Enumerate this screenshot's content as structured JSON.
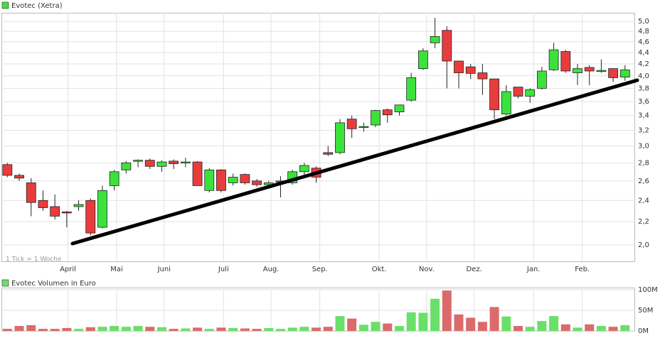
{
  "chart_data": [
    {
      "type": "candlestick",
      "title": "Evotec (Xetra)",
      "note": "1 Tick = 1 Woche",
      "up_color": "#3ce23c",
      "down_color": "#e83c3c",
      "log_scale": true,
      "grid": true,
      "open": [
        2.78,
        2.66,
        2.58,
        2.4,
        2.34,
        2.29,
        2.34,
        2.4,
        2.15,
        2.55,
        2.72,
        2.82,
        2.83,
        2.76,
        2.82,
        2.81,
        2.81,
        2.5,
        2.72,
        2.58,
        2.67,
        2.6,
        2.56,
        2.59,
        2.58,
        2.7,
        2.74,
        2.92,
        2.92,
        3.35,
        3.25,
        3.27,
        3.48,
        3.45,
        3.62,
        4.12,
        4.58,
        4.82,
        4.25,
        4.15,
        4.05,
        3.95,
        3.42,
        3.82,
        3.68,
        3.8,
        4.1,
        4.42,
        4.05,
        4.14,
        4.09,
        4.12,
        3.98
      ],
      "high": [
        2.8,
        2.68,
        2.63,
        2.5,
        2.46,
        2.3,
        2.4,
        2.42,
        2.55,
        2.72,
        2.82,
        2.84,
        2.85,
        2.83,
        2.84,
        2.86,
        2.82,
        2.74,
        2.73,
        2.68,
        2.68,
        2.62,
        2.6,
        2.65,
        2.72,
        2.8,
        2.76,
        3.0,
        3.35,
        3.4,
        3.3,
        3.48,
        3.5,
        3.55,
        4.05,
        4.48,
        5.07,
        4.9,
        4.25,
        4.2,
        4.2,
        3.95,
        3.85,
        3.82,
        3.8,
        4.15,
        4.58,
        4.45,
        4.2,
        4.18,
        4.28,
        4.13,
        4.18
      ],
      "low": [
        2.64,
        2.6,
        2.25,
        2.3,
        2.22,
        2.15,
        2.3,
        2.08,
        2.14,
        2.5,
        2.68,
        2.75,
        2.73,
        2.7,
        2.73,
        2.75,
        2.55,
        2.48,
        2.48,
        2.55,
        2.56,
        2.54,
        2.53,
        2.43,
        2.56,
        2.64,
        2.58,
        2.88,
        2.9,
        3.1,
        3.18,
        3.24,
        3.3,
        3.4,
        3.6,
        4.1,
        4.48,
        3.8,
        3.8,
        3.95,
        3.7,
        3.35,
        3.4,
        3.65,
        3.58,
        3.78,
        4.08,
        4.05,
        3.85,
        3.85,
        4.05,
        3.9,
        3.92
      ],
      "close": [
        2.66,
        2.63,
        2.38,
        2.33,
        2.25,
        2.28,
        2.36,
        2.1,
        2.5,
        2.7,
        2.8,
        2.83,
        2.76,
        2.81,
        2.79,
        2.81,
        2.55,
        2.72,
        2.5,
        2.64,
        2.58,
        2.56,
        2.58,
        2.6,
        2.7,
        2.77,
        2.64,
        2.9,
        3.3,
        3.22,
        3.25,
        3.47,
        3.41,
        3.55,
        3.97,
        4.43,
        4.7,
        4.25,
        4.05,
        4.04,
        3.95,
        3.48,
        3.75,
        3.68,
        3.78,
        4.08,
        4.45,
        4.08,
        4.12,
        4.08,
        4.09,
        3.97,
        4.1
      ],
      "xlim": [
        -0.5,
        52.85
      ],
      "xticks": [
        {
          "value": 5.1,
          "label": "April"
        },
        {
          "value": 9.2,
          "label": "Mai"
        },
        {
          "value": 13.2,
          "label": "Juni"
        },
        {
          "value": 18.2,
          "label": "Juli"
        },
        {
          "value": 22.2,
          "label": "Aug."
        },
        {
          "value": 26.3,
          "label": "Sep."
        },
        {
          "value": 31.3,
          "label": "Okt."
        },
        {
          "value": 35.3,
          "label": "Nov."
        },
        {
          "value": 39.3,
          "label": "Dez."
        },
        {
          "value": 44.3,
          "label": "Jan."
        },
        {
          "value": 48.4,
          "label": "Feb."
        }
      ],
      "ylim": [
        1.87,
        5.18
      ],
      "yticks": [
        {
          "value": 2.0,
          "label": "2,0"
        },
        {
          "value": 2.2,
          "label": "2,2"
        },
        {
          "value": 2.4,
          "label": "2,4"
        },
        {
          "value": 2.6,
          "label": "2,6"
        },
        {
          "value": 2.8,
          "label": "2,8"
        },
        {
          "value": 3.0,
          "label": "3,0"
        },
        {
          "value": 3.2,
          "label": "3,2"
        },
        {
          "value": 3.4,
          "label": "3,4"
        },
        {
          "value": 3.6,
          "label": "3,6"
        },
        {
          "value": 3.8,
          "label": "3,8"
        },
        {
          "value": 4.0,
          "label": "4,0"
        },
        {
          "value": 4.2,
          "label": "4,2"
        },
        {
          "value": 4.4,
          "label": "4,4"
        },
        {
          "value": 4.6,
          "label": "4,6"
        },
        {
          "value": 4.8,
          "label": "4,8"
        },
        {
          "value": 5.0,
          "label": "5,0"
        }
      ]
    },
    {
      "type": "bar",
      "title": "Evotec Volumen in Euro",
      "up_color": "#6ae06a",
      "down_color": "#db6b6b",
      "grid": true,
      "values": [
        5,
        12,
        14,
        5,
        5,
        7,
        5,
        9,
        10,
        12,
        10,
        12,
        10,
        9,
        5,
        6,
        8,
        5,
        8,
        7,
        6,
        5,
        7,
        5,
        8,
        10,
        8,
        10,
        36,
        30,
        15,
        22,
        18,
        12,
        45,
        44,
        78,
        98,
        40,
        32,
        22,
        58,
        35,
        12,
        10,
        24,
        36,
        16,
        8,
        16,
        12,
        10,
        14
      ],
      "ylim": [
        0,
        100
      ],
      "yticks": [
        {
          "value": 0,
          "label": "0M"
        },
        {
          "value": 50,
          "label": "50M"
        },
        {
          "value": 100,
          "label": "100M"
        }
      ]
    }
  ]
}
